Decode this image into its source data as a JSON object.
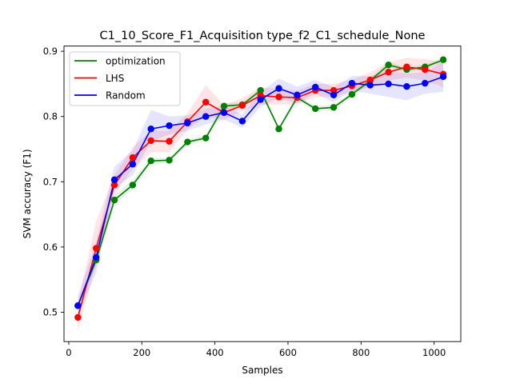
{
  "chart_data": {
    "type": "line",
    "title": "C1_10_Score_F1_Acquisition type_f2_C1_schedule_None",
    "xlabel": "Samples",
    "ylabel": "SVM accuracy (F1)",
    "xlim": [
      -13,
      1073
    ],
    "ylim": [
      0.455,
      0.908
    ],
    "xticks": [
      0,
      200,
      400,
      600,
      800,
      1000
    ],
    "xtick_labels": [
      "0",
      "200",
      "400",
      "600",
      "800",
      "1000"
    ],
    "yticks": [
      0.5,
      0.6,
      0.7,
      0.8,
      0.9
    ],
    "ytick_labels": [
      "0.5",
      "0.6",
      "0.7",
      "0.8",
      "0.9"
    ],
    "grid": false,
    "legend_position": "top-left",
    "x": [
      25,
      75,
      125,
      175,
      225,
      275,
      325,
      375,
      425,
      475,
      525,
      575,
      625,
      675,
      725,
      775,
      825,
      875,
      925,
      975,
      1025
    ],
    "series": [
      {
        "name": "optimization",
        "color": "#008000",
        "values": [
          0.51,
          0.58,
          0.672,
          0.695,
          0.732,
          0.733,
          0.761,
          0.767,
          0.816,
          0.818,
          0.84,
          0.781,
          0.829,
          0.812,
          0.814,
          0.834,
          0.855,
          0.879,
          0.872,
          0.876,
          0.887
        ],
        "lower": [
          0.51,
          0.57,
          0.665,
          0.688,
          0.728,
          0.729,
          0.757,
          0.763,
          0.812,
          0.814,
          0.836,
          0.777,
          0.825,
          0.808,
          0.81,
          0.83,
          0.851,
          0.875,
          0.868,
          0.872,
          0.883
        ],
        "upper": [
          0.51,
          0.59,
          0.68,
          0.702,
          0.736,
          0.737,
          0.765,
          0.771,
          0.82,
          0.822,
          0.844,
          0.785,
          0.833,
          0.816,
          0.818,
          0.838,
          0.859,
          0.883,
          0.876,
          0.88,
          0.891
        ]
      },
      {
        "name": "LHS",
        "color": "#ff0000",
        "values": [
          0.492,
          0.598,
          0.695,
          0.737,
          0.763,
          0.762,
          0.792,
          0.822,
          0.806,
          0.817,
          0.832,
          0.83,
          0.829,
          0.84,
          0.84,
          0.847,
          0.856,
          0.868,
          0.876,
          0.872,
          0.865
        ],
        "lower": [
          0.47,
          0.575,
          0.68,
          0.72,
          0.745,
          0.745,
          0.78,
          0.8,
          0.795,
          0.808,
          0.818,
          0.818,
          0.818,
          0.83,
          0.83,
          0.838,
          0.845,
          0.855,
          0.86,
          0.855,
          0.845
        ],
        "upper": [
          0.515,
          0.64,
          0.71,
          0.753,
          0.778,
          0.778,
          0.805,
          0.848,
          0.818,
          0.828,
          0.845,
          0.842,
          0.84,
          0.85,
          0.85,
          0.856,
          0.868,
          0.883,
          0.89,
          0.888,
          0.883
        ]
      },
      {
        "name": "Random",
        "color": "#0000ff",
        "values": [
          0.51,
          0.584,
          0.703,
          0.727,
          0.781,
          0.786,
          0.79,
          0.8,
          0.806,
          0.793,
          0.826,
          0.843,
          0.833,
          0.845,
          0.833,
          0.851,
          0.848,
          0.85,
          0.846,
          0.851,
          0.861
        ],
        "lower": [
          0.495,
          0.56,
          0.69,
          0.71,
          0.762,
          0.772,
          0.778,
          0.788,
          0.795,
          0.783,
          0.815,
          0.828,
          0.82,
          0.835,
          0.822,
          0.84,
          0.835,
          0.83,
          0.825,
          0.835,
          0.838
        ],
        "upper": [
          0.525,
          0.608,
          0.723,
          0.748,
          0.81,
          0.8,
          0.802,
          0.812,
          0.817,
          0.803,
          0.838,
          0.858,
          0.846,
          0.856,
          0.845,
          0.862,
          0.862,
          0.87,
          0.866,
          0.868,
          0.884
        ]
      }
    ]
  }
}
